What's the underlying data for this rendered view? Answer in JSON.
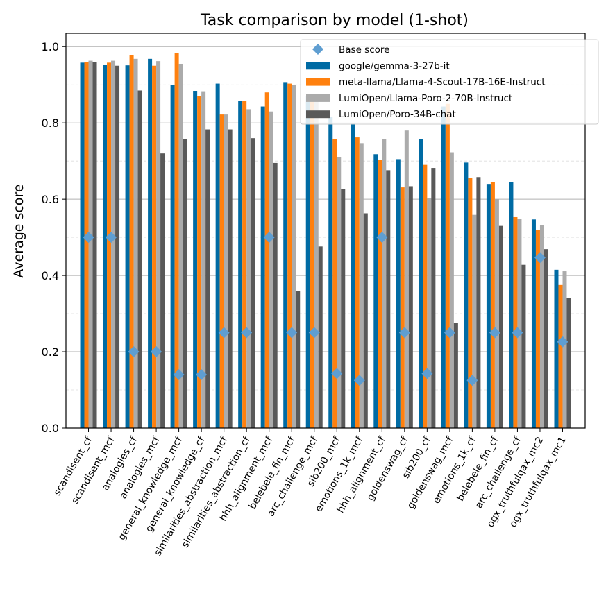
{
  "chart_data": {
    "type": "bar",
    "title": "Task comparison by model (1-shot)",
    "y_label": "Average score",
    "categories": [
      "scandisent_cf",
      "scandisent_mcf",
      "analogies_cf",
      "analogies_mcf",
      "general_knowledge_mcf",
      "general_knowledge_cf",
      "similarities_abstraction_mcf",
      "similarities_abstraction_cf",
      "hhh_alignment_mcf",
      "belebele_fin_mcf",
      "arc_challenge_mcf",
      "sib200_mcf",
      "emotions_1k_mcf",
      "hhh_alignment_cf",
      "goldenswag_cf",
      "sib200_cf",
      "goldenswag_mcf",
      "emotions_1k_cf",
      "belebele_fin_cf",
      "arc_challenge_cf",
      "ogx_truthfulqax_mc2",
      "ogx_truthfulqax_mc1"
    ],
    "series": [
      {
        "name": "google/gemma-3-27b-it",
        "color": "#006ba4",
        "values": [
          0.958,
          0.953,
          0.951,
          0.968,
          0.9,
          0.884,
          0.903,
          0.857,
          0.843,
          0.907,
          0.87,
          0.815,
          0.798,
          0.718,
          0.705,
          0.758,
          0.843,
          0.696,
          0.64,
          0.645,
          0.547,
          0.415
        ]
      },
      {
        "name": "meta-llama/Llama-4-Scout-17B-16E-Instruct",
        "color": "#ff800e",
        "values": [
          0.96,
          0.958,
          0.977,
          0.95,
          0.983,
          0.87,
          0.822,
          0.857,
          0.88,
          0.903,
          0.86,
          0.757,
          0.762,
          0.703,
          0.631,
          0.69,
          0.85,
          0.655,
          0.645,
          0.553,
          0.519,
          0.375
        ]
      },
      {
        "name": "LumiOpen/Llama-Poro-2-70B-Instruct",
        "color": "#ababab",
        "values": [
          0.963,
          0.963,
          0.968,
          0.962,
          0.955,
          0.883,
          0.822,
          0.836,
          0.83,
          0.9,
          0.87,
          0.71,
          0.747,
          0.758,
          0.78,
          0.602,
          0.723,
          0.559,
          0.6,
          0.548,
          0.532,
          0.411
        ]
      },
      {
        "name": "LumiOpen/Poro-34B-chat",
        "color": "#595959",
        "values": [
          0.96,
          0.95,
          0.885,
          0.72,
          0.758,
          0.783,
          0.783,
          0.76,
          0.695,
          0.36,
          0.476,
          0.627,
          0.563,
          0.676,
          0.634,
          0.682,
          0.276,
          0.658,
          0.53,
          0.428,
          0.469,
          0.341
        ]
      }
    ],
    "base_score": {
      "name": "Base score",
      "color": "#5f9ed1",
      "values": [
        0.5,
        0.5,
        0.2,
        0.2,
        0.14,
        0.14,
        0.25,
        0.25,
        0.5,
        0.25,
        0.25,
        0.143,
        0.125,
        0.5,
        0.25,
        0.143,
        0.25,
        0.125,
        0.25,
        0.25,
        0.447,
        0.226
      ]
    },
    "ylim": [
      0,
      1.035
    ],
    "yticks": [
      {
        "value": 0,
        "label": "0.0"
      },
      {
        "value": 0.2,
        "label": "0.2"
      },
      {
        "value": 0.4,
        "label": "0.4"
      },
      {
        "value": 0.6,
        "label": "0.6"
      },
      {
        "value": 0.8,
        "label": "0.8"
      },
      {
        "value": 1,
        "label": "1.0"
      }
    ],
    "yminorticks": [
      0.1,
      0.3,
      0.5,
      0.7,
      0.9
    ],
    "grid": true,
    "legend": "upper right"
  }
}
